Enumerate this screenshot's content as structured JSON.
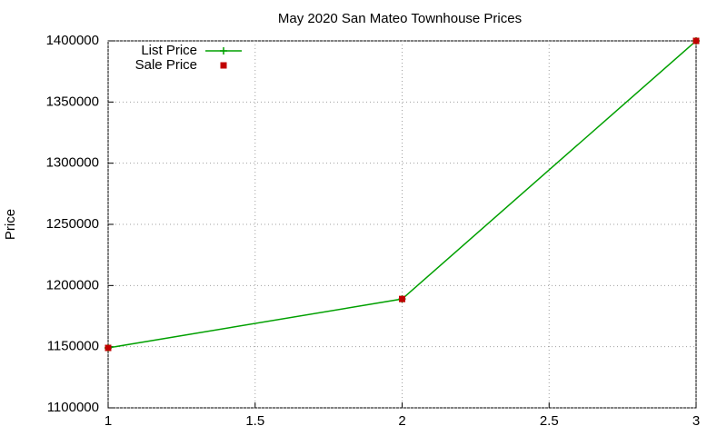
{
  "chart_data": {
    "type": "line",
    "title": "May 2020 San Mateo Townhouse Prices",
    "y_label": "Price",
    "x": [
      1,
      2,
      3
    ],
    "series": [
      {
        "name": "List Price",
        "color": "#00a000",
        "values": [
          1149000,
          1189000,
          1400000
        ]
      },
      {
        "name": "Sale Price",
        "color": "#c00000",
        "values": [
          1149000,
          1189000,
          1400000
        ]
      }
    ],
    "xlim": [
      1,
      3
    ],
    "xticks": [
      1,
      1.5,
      2,
      2.5,
      3
    ],
    "ylim": [
      1100000,
      1400000
    ],
    "yticks": [
      1100000,
      1150000,
      1200000,
      1250000,
      1300000,
      1350000,
      1400000
    ],
    "grid": true,
    "legend": "top-left"
  }
}
